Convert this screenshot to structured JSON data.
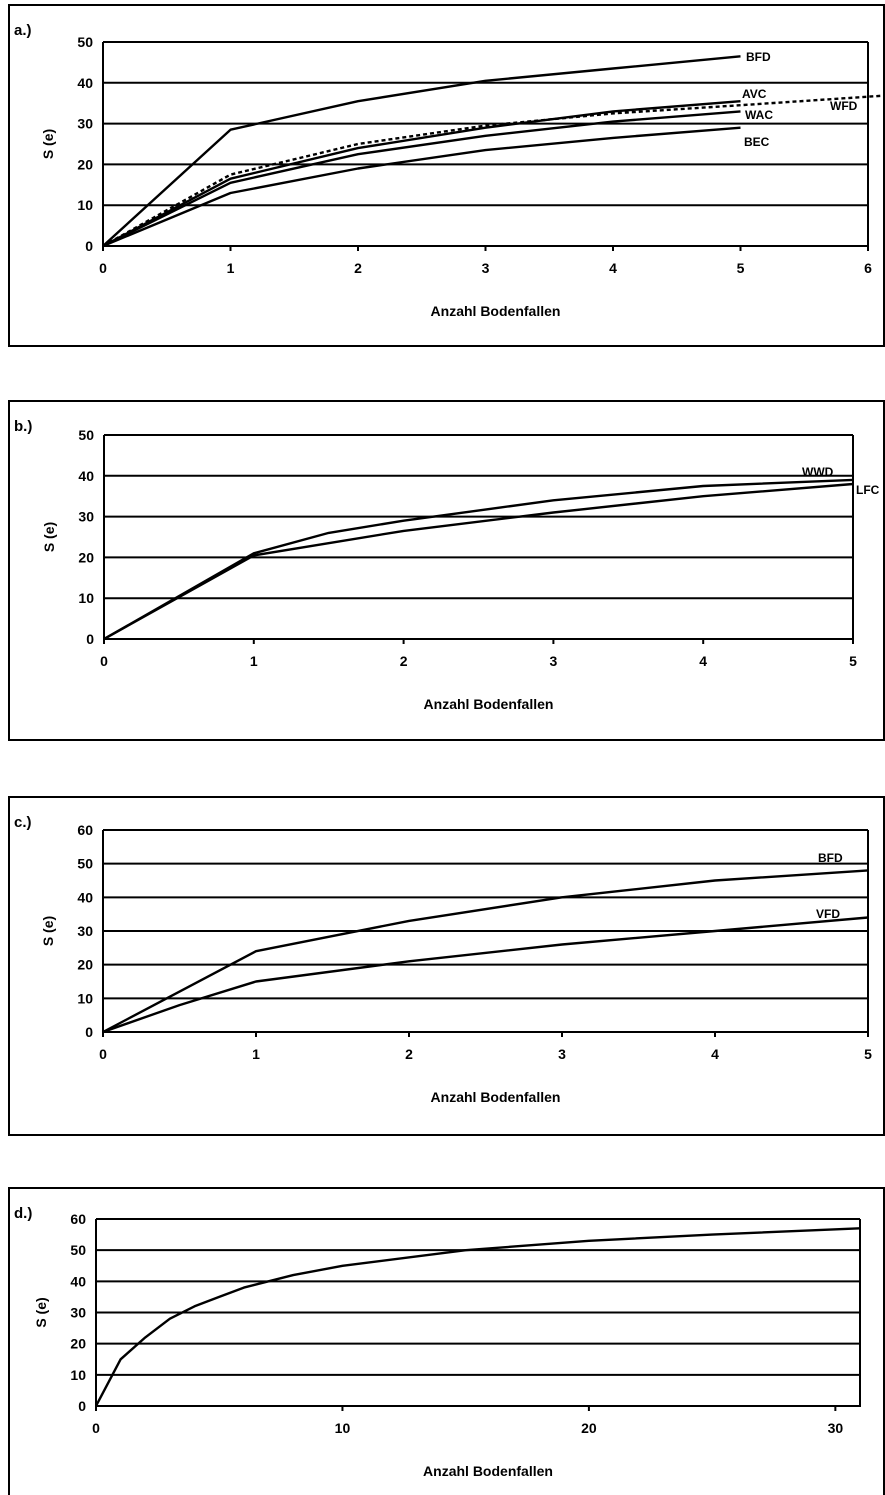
{
  "chart_data": [
    {
      "type": "line",
      "panel_label": "a.)",
      "xlabel": "Anzahl Bodenfallen",
      "ylabel": "S (e)",
      "xlim": [
        0,
        6
      ],
      "ylim": [
        0,
        50
      ],
      "xticks": [
        0,
        1,
        2,
        3,
        4,
        5,
        6
      ],
      "yticks": [
        0,
        10,
        20,
        30,
        40,
        50
      ],
      "grid": true,
      "series": [
        {
          "name": "BFD",
          "x": [
            0,
            1,
            2,
            3,
            4,
            5
          ],
          "y": [
            0,
            28.5,
            35.5,
            40.5,
            43.5,
            46.5
          ],
          "dashed": false
        },
        {
          "name": "AVC",
          "x": [
            0,
            1,
            2,
            3,
            4,
            5
          ],
          "y": [
            0,
            16.5,
            24,
            29,
            33,
            35.5
          ],
          "dashed": false
        },
        {
          "name": "WFD",
          "x": [
            0,
            1,
            2,
            3,
            4,
            5,
            6.2
          ],
          "y": [
            0,
            17.5,
            25,
            29.5,
            32.5,
            34.5,
            37
          ],
          "dashed": true
        },
        {
          "name": "WAC",
          "x": [
            0,
            1,
            2,
            3,
            4,
            5
          ],
          "y": [
            0,
            15.5,
            22.5,
            27,
            30.5,
            33
          ],
          "dashed": false
        },
        {
          "name": "BEC",
          "x": [
            0,
            1,
            2,
            3,
            4,
            5
          ],
          "y": [
            0,
            13,
            19,
            23.5,
            26.5,
            29
          ],
          "dashed": false
        }
      ]
    },
    {
      "type": "line",
      "panel_label": "b.)",
      "xlabel": "Anzahl Bodenfallen",
      "ylabel": "S (e)",
      "xlim": [
        0,
        5
      ],
      "ylim": [
        0,
        50
      ],
      "xticks": [
        0,
        1,
        2,
        3,
        4,
        5
      ],
      "yticks": [
        0,
        10,
        20,
        30,
        40,
        50
      ],
      "grid": true,
      "series": [
        {
          "name": "WWD",
          "x": [
            0,
            1,
            1.5,
            2,
            3,
            4,
            5
          ],
          "y": [
            0,
            21,
            26,
            29,
            34,
            37.5,
            39
          ],
          "dashed": false
        },
        {
          "name": "LFC",
          "x": [
            0,
            1,
            2,
            3,
            4,
            5
          ],
          "y": [
            0,
            20.5,
            26.5,
            31,
            35,
            38
          ],
          "dashed": false
        }
      ]
    },
    {
      "type": "line",
      "panel_label": "c.)",
      "xlabel": "Anzahl Bodenfallen",
      "ylabel": "S (e)",
      "xlim": [
        0,
        5
      ],
      "ylim": [
        0,
        60
      ],
      "xticks": [
        0,
        1,
        2,
        3,
        4,
        5
      ],
      "yticks": [
        0,
        10,
        20,
        30,
        40,
        50,
        60
      ],
      "grid": true,
      "series": [
        {
          "name": "BFD",
          "x": [
            0,
            1,
            2,
            3,
            4,
            5
          ],
          "y": [
            0,
            24,
            33,
            40,
            45,
            48
          ],
          "dashed": false
        },
        {
          "name": "VFD",
          "x": [
            0,
            0.5,
            1,
            2,
            3,
            4,
            5
          ],
          "y": [
            0,
            8,
            15,
            21,
            26,
            30,
            34
          ],
          "dashed": false
        }
      ]
    },
    {
      "type": "line",
      "panel_label": "d.)",
      "xlabel": "Anzahl Bodenfallen",
      "ylabel": "S (e)",
      "xlim": [
        0,
        31
      ],
      "ylim": [
        0,
        60
      ],
      "xticks": [
        0,
        10,
        20,
        30
      ],
      "yticks": [
        0,
        10,
        20,
        30,
        40,
        50,
        60
      ],
      "grid": true,
      "series": [
        {
          "x": [
            0,
            1,
            2,
            3,
            4,
            5,
            6,
            8,
            10,
            15,
            20,
            25,
            31
          ],
          "y": [
            0,
            15,
            22,
            28,
            32,
            35,
            38,
            42,
            45,
            50,
            53,
            55,
            57
          ],
          "dashed": false
        }
      ]
    }
  ]
}
